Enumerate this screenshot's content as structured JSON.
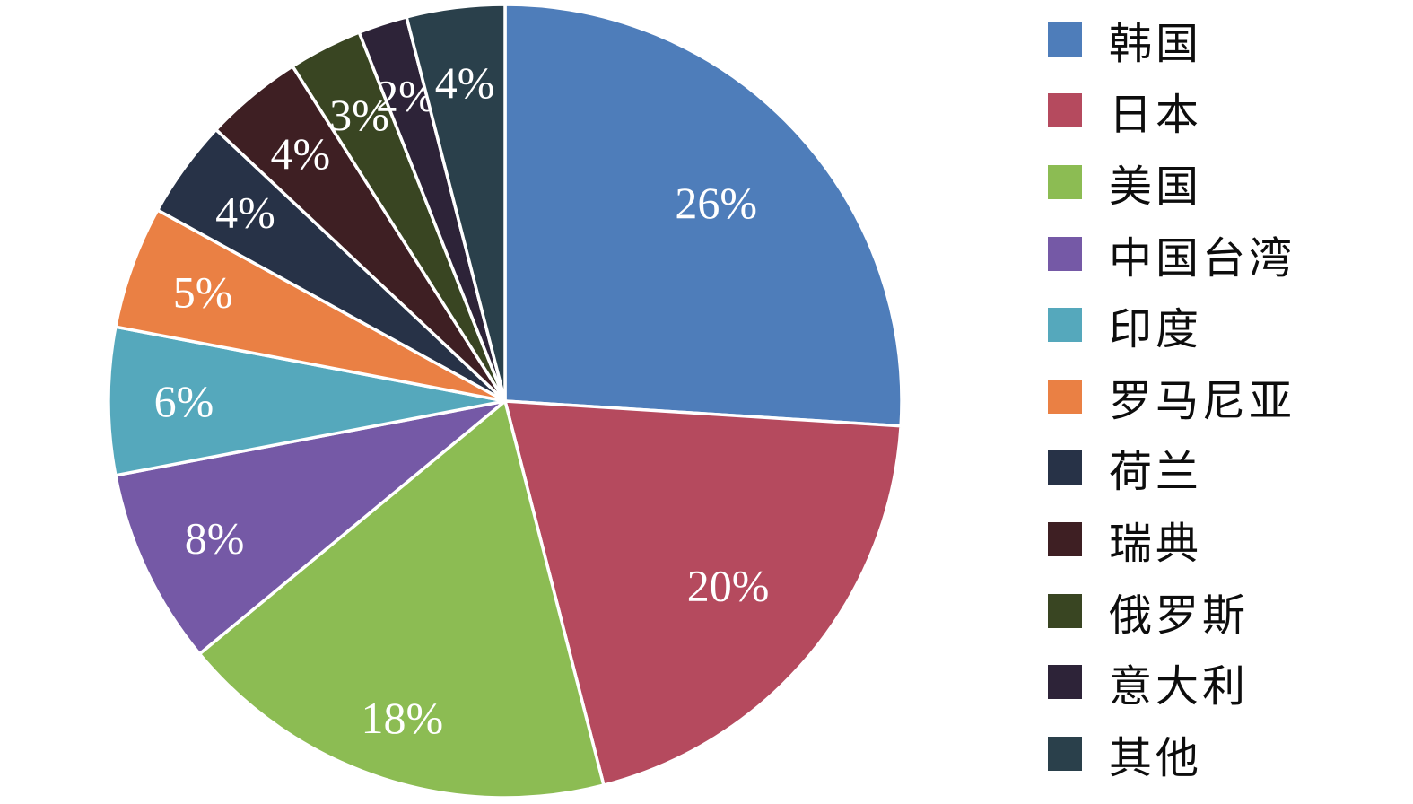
{
  "chart_data": {
    "type": "pie",
    "title": "",
    "categories": [
      "韩国",
      "日本",
      "美国",
      "中国台湾",
      "印度",
      "罗马尼亚",
      "荷兰",
      "瑞典",
      "俄罗斯",
      "意大利",
      "其他"
    ],
    "values": [
      26,
      20,
      18,
      8,
      6,
      5,
      4,
      4,
      3,
      2,
      4
    ],
    "slice_labels": [
      "26%",
      "20%",
      "18%",
      "8%",
      "6%",
      "5%",
      "4%",
      "4%",
      "3%",
      "2%",
      "4%"
    ],
    "colors": [
      "#4E7DBA",
      "#B54A5E",
      "#8CBC53",
      "#7559A6",
      "#55A8BC",
      "#EA8044",
      "#273247",
      "#3E1F23",
      "#394522",
      "#2D2338",
      "#2A404B"
    ],
    "slice_border_color": "#FFFFFF",
    "label_color": "#FFFFFF",
    "legend_position": "right",
    "start_angle_deg": 0,
    "direction": "clockwise"
  }
}
